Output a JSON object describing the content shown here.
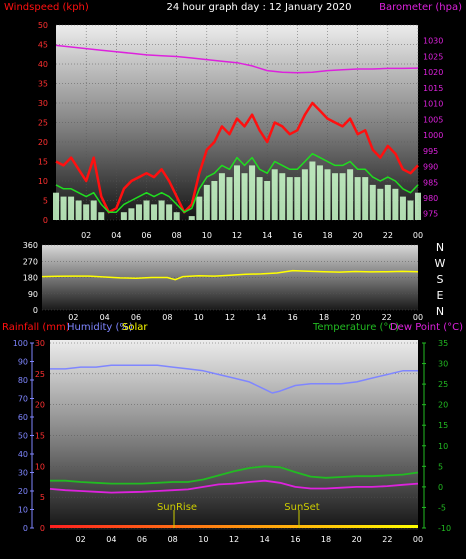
{
  "colors": {
    "windspeed": "#ff1010",
    "gust": "#20dd20",
    "wind_fill": "#ccffcc",
    "barometer": "#dd22dd",
    "direction": "#ffff00",
    "humidity": "#7f86ff",
    "temperature": "#22bb22",
    "dewpoint": "#dd22dd",
    "solar": "#ffff00",
    "rainfall": "#ff1010",
    "axis_text": "#ffffff",
    "sun_label": "#cccc00"
  },
  "top": {
    "title": "24 hour graph day : 12 January 2020",
    "left_label": "Windspeed (kph)",
    "right_label": "Barometer (hpa)"
  },
  "middle": {
    "compass": [
      "N",
      "W",
      "S",
      "E",
      "N"
    ]
  },
  "bottom": {
    "rain_label": "Rainfall (mm)",
    "humidity_label": "Humidity (%)",
    "solar_label": "Solar",
    "temperature_label": "Temperature (°C)",
    "dewpoint_label": "Dew Point (°C)",
    "sunrise_label": "SunRise",
    "sunset_label": "SunSet"
  },
  "chart_data": [
    {
      "type": "line",
      "title": "24 hour graph day : 12 January 2020",
      "x_ticks": [
        "02",
        "04",
        "06",
        "08",
        "10",
        "12",
        "14",
        "16",
        "18",
        "20",
        "22",
        "00"
      ],
      "xlim": [
        0,
        24
      ],
      "ylabel": "Windspeed (kph)",
      "ylim": [
        0,
        50
      ],
      "y_ticks": [
        0,
        5,
        10,
        15,
        20,
        25,
        30,
        35,
        40,
        45,
        50
      ],
      "y2label": "Barometer (hpa)",
      "y2lim": [
        973,
        1035
      ],
      "y2_ticks": [
        975,
        980,
        985,
        990,
        995,
        1000,
        1005,
        1010,
        1015,
        1020,
        1025,
        1030
      ],
      "series": [
        {
          "name": "Windspeed",
          "axis": "left",
          "x": [
            0,
            0.5,
            1,
            1.5,
            2,
            2.5,
            3,
            3.5,
            4,
            4.5,
            5,
            5.5,
            6,
            6.5,
            7,
            7.5,
            8,
            8.5,
            9,
            9.5,
            10,
            10.5,
            11,
            11.5,
            12,
            12.5,
            13,
            13.5,
            14,
            14.5,
            15,
            15.5,
            16,
            16.5,
            17,
            17.5,
            18,
            18.5,
            19,
            19.5,
            20,
            20.5,
            21,
            21.5,
            22,
            22.5,
            23,
            23.5,
            24
          ],
          "values": [
            15,
            14,
            16,
            13,
            10,
            16,
            6,
            2,
            3,
            8,
            10,
            11,
            12,
            11,
            13,
            10,
            6,
            2,
            4,
            12,
            18,
            20,
            24,
            22,
            26,
            24,
            27,
            23,
            20,
            25,
            24,
            22,
            23,
            27,
            30,
            28,
            26,
            25,
            24,
            26,
            22,
            23,
            18,
            16,
            19,
            17,
            13,
            12,
            14
          ]
        },
        {
          "name": "Gust",
          "axis": "left",
          "x": [
            0,
            0.5,
            1,
            1.5,
            2,
            2.5,
            3,
            3.5,
            4,
            4.5,
            5,
            5.5,
            6,
            6.5,
            7,
            7.5,
            8,
            8.5,
            9,
            9.5,
            10,
            10.5,
            11,
            11.5,
            12,
            12.5,
            13,
            13.5,
            14,
            14.5,
            15,
            15.5,
            16,
            16.5,
            17,
            17.5,
            18,
            18.5,
            19,
            19.5,
            20,
            20.5,
            21,
            21.5,
            22,
            22.5,
            23,
            23.5,
            24
          ],
          "values": [
            7,
            6,
            6,
            5,
            4,
            5,
            2,
            0,
            0,
            2,
            3,
            4,
            5,
            4,
            5,
            4,
            2,
            0,
            1,
            6,
            9,
            10,
            12,
            11,
            14,
            12,
            14,
            11,
            10,
            13,
            12,
            11,
            11,
            13,
            15,
            14,
            13,
            12,
            12,
            13,
            11,
            11,
            9,
            8,
            9,
            8,
            6,
            5,
            7
          ]
        },
        {
          "name": "Barometer",
          "axis": "right",
          "x": [
            0,
            1,
            2,
            3,
            4,
            5,
            6,
            7,
            8,
            9,
            10,
            11,
            12,
            13,
            14,
            15,
            16,
            17,
            18,
            19,
            20,
            21,
            22,
            23,
            24
          ],
          "values": [
            1028.5,
            1028,
            1027.5,
            1027,
            1026.5,
            1026,
            1025.5,
            1025.2,
            1025,
            1024.5,
            1024,
            1023.5,
            1023,
            1022,
            1020.5,
            1020,
            1019.8,
            1020,
            1020.5,
            1020.8,
            1021,
            1021,
            1021.2,
            1021.2,
            1021.3
          ]
        }
      ]
    },
    {
      "type": "line",
      "x_ticks": [
        "02",
        "04",
        "06",
        "08",
        "10",
        "12",
        "14",
        "16",
        "18",
        "20",
        "22",
        "00"
      ],
      "xlim": [
        0,
        24
      ],
      "ylim": [
        0,
        360
      ],
      "y_ticks": [
        0,
        90,
        180,
        270,
        360
      ],
      "series": [
        {
          "name": "Wind direction",
          "x": [
            0,
            1,
            2,
            3,
            4,
            5,
            6,
            7,
            8,
            8.5,
            9,
            10,
            11,
            12,
            13,
            14,
            15,
            16,
            17,
            18,
            19,
            20,
            21,
            22,
            23,
            24
          ],
          "values": [
            185,
            187,
            188,
            188,
            183,
            178,
            176,
            180,
            180,
            168,
            185,
            190,
            188,
            192,
            198,
            200,
            205,
            218,
            215,
            212,
            210,
            213,
            211,
            212,
            214,
            212
          ]
        }
      ]
    },
    {
      "type": "line",
      "x_ticks": [
        "02",
        "04",
        "06",
        "08",
        "10",
        "12",
        "14",
        "16",
        "18",
        "20",
        "22",
        "00"
      ],
      "xlim": [
        0,
        24
      ],
      "ylabel": "Rainfall (mm)",
      "ylim": [
        0,
        30
      ],
      "y_ticks": [
        0,
        5,
        10,
        15,
        20,
        25,
        30
      ],
      "humidity_ticks": [
        0,
        10,
        20,
        30,
        40,
        50,
        60,
        70,
        80,
        90,
        100
      ],
      "humidity_lim": [
        0,
        100
      ],
      "y2label": "Temperature (°C)",
      "y2lim": [
        -10,
        35
      ],
      "y2_ticks": [
        -10,
        -5,
        0,
        5,
        10,
        15,
        20,
        25,
        30,
        35
      ],
      "annotations": [
        {
          "text": "SunRise",
          "x": 8.2
        },
        {
          "text": "SunSet",
          "x": 16.2
        }
      ],
      "series": [
        {
          "name": "Humidity",
          "axis": "humidity",
          "x": [
            0,
            1,
            2,
            3,
            4,
            5,
            6,
            7,
            8,
            9,
            10,
            11,
            12,
            13,
            14,
            14.5,
            15,
            16,
            17,
            18,
            19,
            20,
            21,
            22,
            23,
            24
          ],
          "values": [
            86,
            86,
            87,
            87,
            88,
            88,
            88,
            88,
            87,
            86,
            85,
            83,
            81,
            79,
            75,
            73,
            74,
            77,
            78,
            78,
            78,
            79,
            81,
            83,
            85,
            85
          ]
        },
        {
          "name": "Temperature",
          "axis": "right",
          "x": [
            0,
            1,
            2,
            3,
            4,
            5,
            6,
            7,
            8,
            9,
            10,
            11,
            12,
            13,
            14,
            15,
            16,
            17,
            18,
            19,
            20,
            21,
            22,
            23,
            24
          ],
          "values": [
            1.5,
            1.5,
            1.2,
            1.0,
            0.8,
            0.8,
            0.8,
            1.0,
            1.2,
            1.2,
            1.8,
            2.8,
            3.8,
            4.6,
            5.0,
            4.8,
            3.6,
            2.5,
            2.2,
            2.4,
            2.6,
            2.6,
            2.8,
            3.0,
            3.5
          ]
        },
        {
          "name": "Dew Point",
          "axis": "right",
          "x": [
            0,
            1,
            2,
            3,
            4,
            5,
            6,
            7,
            8,
            9,
            10,
            11,
            12,
            13,
            14,
            15,
            16,
            17,
            18,
            19,
            20,
            21,
            22,
            23,
            24
          ],
          "values": [
            -0.5,
            -0.8,
            -1.0,
            -1.2,
            -1.4,
            -1.3,
            -1.2,
            -1.0,
            -0.8,
            -0.6,
            0,
            0.6,
            0.8,
            1.2,
            1.5,
            1.0,
            0,
            -0.4,
            -0.4,
            -0.2,
            0,
            0,
            0.2,
            0.5,
            0.8
          ]
        },
        {
          "name": "Rainfall",
          "axis": "left",
          "x": [
            0,
            24
          ],
          "values": [
            0,
            0
          ]
        }
      ]
    }
  ]
}
